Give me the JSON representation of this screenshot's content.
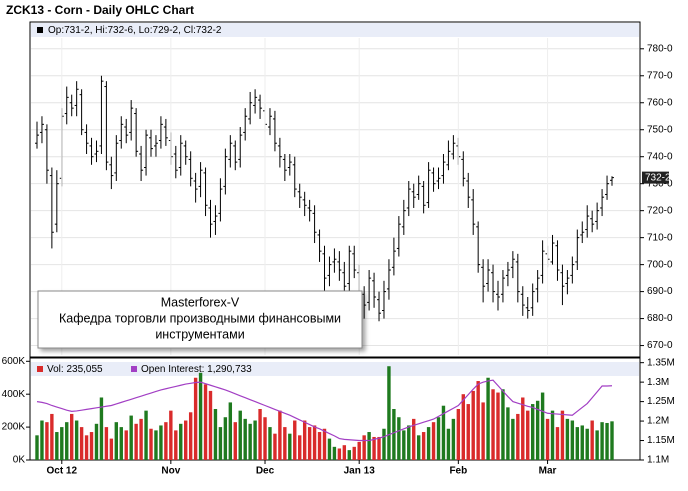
{
  "chart_data": [
    {
      "type": "ohlc",
      "title": "ZCK13 - Corn - Daily OHLC Chart",
      "legend_text": "Op:731-2, Hi:732-6, Lo:729-2, Cl:732-2",
      "color": "#000000",
      "grid": true,
      "open": [
        745,
        749,
        750,
        733,
        715,
        732,
        756,
        760,
        759,
        763,
        749,
        744,
        741,
        744,
        766,
        737,
        734,
        746,
        751,
        749,
        756,
        741,
        736,
        747,
        744,
        746,
        751,
        746,
        741,
        736,
        744,
        739,
        731,
        729,
        734,
        721,
        716,
        719,
        729,
        739,
        744,
        739,
        749,
        754,
        759,
        761,
        757,
        751,
        754,
        744,
        739,
        736,
        737,
        727,
        724,
        721,
        719,
        711,
        704,
        696,
        701,
        701,
        697,
        693,
        704,
        697,
        689,
        686,
        694,
        687,
        683,
        691,
        699,
        706,
        714,
        721,
        727,
        726,
        729,
        723,
        734,
        731,
        733,
        737,
        741,
        744,
        739,
        731,
        724,
        714,
        699,
        693,
        697,
        689,
        689,
        696,
        699,
        701,
        689,
        684,
        684,
        691,
        696,
        704,
        701,
        707,
        697,
        693,
        696,
        701,
        711,
        713,
        717,
        716,
        721,
        726,
        731.25
      ],
      "high": [
        753,
        755,
        752,
        736,
        735,
        758,
        766,
        763,
        768,
        765,
        752,
        747,
        746,
        770,
        768,
        740,
        748,
        755,
        754,
        761,
        758,
        744,
        750,
        750,
        748,
        755,
        754,
        749,
        744,
        748,
        746,
        742,
        734,
        738,
        736,
        724,
        722,
        732,
        743,
        748,
        746,
        751,
        758,
        764,
        765,
        763,
        760,
        758,
        757,
        747,
        741,
        741,
        740,
        730,
        727,
        724,
        722,
        713,
        707,
        703,
        706,
        705,
        701,
        707,
        707,
        700,
        692,
        698,
        697,
        690,
        694,
        702,
        710,
        718,
        724,
        731,
        730,
        733,
        731,
        738,
        736,
        736,
        741,
        746,
        748,
        747,
        742,
        734,
        728,
        716,
        702,
        702,
        700,
        694,
        698,
        701,
        705,
        704,
        692,
        688,
        693,
        698,
        709,
        707,
        711,
        709,
        700,
        698,
        703,
        713,
        716,
        722,
        720,
        723,
        728,
        733,
        732.75
      ],
      "low": [
        743,
        745,
        730,
        706,
        712,
        729,
        752,
        755,
        755,
        748,
        741,
        737,
        738,
        741,
        735,
        728,
        731,
        743,
        745,
        746,
        740,
        731,
        733,
        740,
        740,
        743,
        744,
        737,
        732,
        733,
        737,
        729,
        723,
        725,
        718,
        710,
        711,
        716,
        726,
        736,
        735,
        736,
        746,
        752,
        756,
        754,
        749,
        748,
        742,
        736,
        731,
        733,
        725,
        721,
        718,
        716,
        708,
        701,
        690,
        692,
        697,
        694,
        688,
        690,
        695,
        686,
        680,
        683,
        684,
        679,
        680,
        687,
        696,
        703,
        711,
        718,
        721,
        724,
        719,
        721,
        727,
        728,
        730,
        735,
        739,
        737,
        729,
        721,
        711,
        697,
        686,
        690,
        686,
        683,
        686,
        692,
        695,
        686,
        681,
        680,
        681,
        686,
        693,
        699,
        700,
        694,
        685,
        689,
        693,
        698,
        708,
        710,
        712,
        713,
        718,
        724,
        729.25
      ],
      "close": [
        748,
        752,
        735,
        712,
        730,
        755,
        762,
        758,
        765,
        750,
        745,
        740,
        742,
        768,
        738,
        733,
        745,
        752,
        748,
        758,
        742,
        735,
        748,
        743,
        745,
        752,
        747,
        740,
        735,
        745,
        740,
        732,
        728,
        735,
        722,
        715,
        718,
        728,
        740,
        745,
        738,
        748,
        755,
        760,
        762,
        758,
        752,
        755,
        745,
        740,
        735,
        738,
        728,
        725,
        722,
        720,
        712,
        705,
        695,
        700,
        702,
        698,
        692,
        705,
        698,
        690,
        685,
        695,
        688,
        682,
        690,
        698,
        705,
        715,
        720,
        728,
        725,
        730,
        722,
        735,
        730,
        732,
        738,
        742,
        745,
        740,
        732,
        725,
        715,
        700,
        692,
        698,
        690,
        688,
        695,
        698,
        702,
        690,
        685,
        683,
        690,
        695,
        705,
        702,
        708,
        698,
        692,
        695,
        700,
        710,
        712,
        718,
        715,
        720,
        725,
        730,
        732.25
      ],
      "ylim": [
        666.5,
        784
      ],
      "yticks": [
        {
          "value": 670,
          "label": "670-0"
        },
        {
          "value": 680,
          "label": "680-0"
        },
        {
          "value": 690,
          "label": "690-0"
        },
        {
          "value": 700,
          "label": "700-0"
        },
        {
          "value": 710,
          "label": "710-0"
        },
        {
          "value": 720,
          "label": "720-0"
        },
        {
          "value": 730,
          "label": "730-0"
        },
        {
          "value": 740,
          "label": "740-0"
        },
        {
          "value": 750,
          "label": "750-0"
        },
        {
          "value": 760,
          "label": "760-0"
        },
        {
          "value": 770,
          "label": "770-0"
        },
        {
          "value": 780,
          "label": "780-0"
        }
      ],
      "last_label": {
        "value": 732.25,
        "label": "732-2"
      },
      "annotation": [
        "Masterforex-V",
        "Кафедра торговли производными финансовыми",
        "инструментами"
      ]
    },
    {
      "type": "bar",
      "categories": [
        null,
        null,
        null,
        null,
        null,
        "Oct 12",
        null,
        null,
        null,
        null,
        null,
        null,
        null,
        null,
        null,
        null,
        null,
        null,
        null,
        null,
        null,
        null,
        null,
        null,
        null,
        null,
        null,
        "Nov",
        null,
        null,
        null,
        null,
        null,
        null,
        null,
        null,
        null,
        null,
        null,
        null,
        null,
        null,
        null,
        null,
        null,
        null,
        "Dec",
        null,
        null,
        null,
        null,
        null,
        null,
        null,
        null,
        null,
        null,
        null,
        null,
        null,
        null,
        null,
        null,
        null,
        null,
        "Jan 13",
        null,
        null,
        null,
        null,
        null,
        null,
        null,
        null,
        null,
        null,
        null,
        null,
        null,
        null,
        null,
        null,
        null,
        null,
        null,
        "Feb",
        null,
        null,
        null,
        null,
        null,
        null,
        null,
        null,
        null,
        null,
        null,
        null,
        null,
        null,
        null,
        null,
        null,
        "Mar",
        null,
        null,
        null,
        null,
        null,
        null,
        null,
        null,
        null,
        null,
        null,
        null,
        null
      ],
      "series": [
        {
          "name": "Vol: 235,055",
          "up_color": "#1f7a1f",
          "down_color": "#d92b2b",
          "values": [
            150000,
            240000,
            230000,
            280000,
            170000,
            200000,
            230000,
            280000,
            240000,
            200000,
            150000,
            170000,
            220000,
            380000,
            200000,
            130000,
            230000,
            200000,
            180000,
            270000,
            220000,
            250000,
            300000,
            190000,
            180000,
            210000,
            230000,
            300000,
            180000,
            220000,
            240000,
            290000,
            500000,
            530000,
            460000,
            420000,
            310000,
            200000,
            260000,
            350000,
            230000,
            300000,
            250000,
            220000,
            240000,
            310000,
            260000,
            200000,
            160000,
            300000,
            200000,
            160000,
            240000,
            150000,
            240000,
            200000,
            210000,
            170000,
            190000,
            130000,
            80000,
            70000,
            90000,
            60000,
            80000,
            110000,
            150000,
            170000,
            140000,
            140000,
            190000,
            570000,
            310000,
            260000,
            180000,
            210000,
            250000,
            150000,
            170000,
            200000,
            230000,
            260000,
            330000,
            190000,
            250000,
            310000,
            400000,
            340000,
            420000,
            480000,
            350000,
            500000,
            430000,
            410000,
            430000,
            320000,
            250000,
            280000,
            380000,
            300000,
            340000,
            360000,
            410000,
            250000,
            300000,
            200000,
            300000,
            250000,
            240000,
            200000,
            210000,
            190000,
            240000,
            180000,
            230000,
            225000,
            235055
          ]
        },
        {
          "name": "Open Interest: 1,290,733",
          "color": "#a23fc4",
          "axis": "y2",
          "values": [
            1250000,
            1248000,
            1245000,
            1240000,
            1236000,
            1232000,
            1228000,
            1225000,
            1226000,
            1228000,
            1230000,
            1232000,
            1234000,
            1236000,
            1238000,
            1240000,
            1244000,
            1248000,
            1252000,
            1256000,
            1260000,
            1264000,
            1268000,
            1272000,
            1276000,
            1280000,
            1283000,
            1286000,
            1289000,
            1292000,
            1295000,
            1297000,
            1299000,
            1300000,
            1296000,
            1292000,
            1288000,
            1284000,
            1280000,
            1275000,
            1270000,
            1265000,
            1260000,
            1255000,
            1250000,
            1245000,
            1240000,
            1235000,
            1230000,
            1225000,
            1220000,
            1215000,
            1209000,
            1203000,
            1197000,
            1191000,
            1185000,
            1180000,
            1174000,
            1168000,
            1162000,
            1155000,
            1153000,
            1152000,
            1151000,
            1150000,
            1150000,
            1150000,
            1153000,
            1156000,
            1160000,
            1165000,
            1170000,
            1175000,
            1180000,
            1185000,
            1189000,
            1193000,
            1197000,
            1201000,
            1205000,
            1212000,
            1219000,
            1226000,
            1233000,
            1240000,
            1254000,
            1268000,
            1282000,
            1295000,
            1300000,
            1303000,
            1305000,
            1291000,
            1277000,
            1263000,
            1250000,
            1246000,
            1242000,
            1238000,
            1235000,
            1230000,
            1225000,
            1220000,
            1219000,
            1218000,
            1217000,
            1216000,
            1215000,
            1225000,
            1235000,
            1245000,
            1260000,
            1275000,
            1290000,
            1290000,
            1290733
          ]
        }
      ],
      "ylim": [
        0,
        620000
      ],
      "yticks": [
        {
          "value": 0,
          "label": "0K"
        },
        {
          "value": 200000,
          "label": "200K"
        },
        {
          "value": 400000,
          "label": "400K"
        },
        {
          "value": 600000,
          "label": "600K"
        }
      ],
      "y2lim": [
        1100000,
        1362000
      ],
      "y2ticks": [
        {
          "value": 1100000,
          "label": "1.1M"
        },
        {
          "value": 1150000,
          "label": "1.15M"
        },
        {
          "value": 1200000,
          "label": "1.2M"
        },
        {
          "value": 1250000,
          "label": "1.25M"
        },
        {
          "value": 1300000,
          "label": "1.3M"
        },
        {
          "value": 1350000,
          "label": "1.35M"
        }
      ]
    }
  ]
}
